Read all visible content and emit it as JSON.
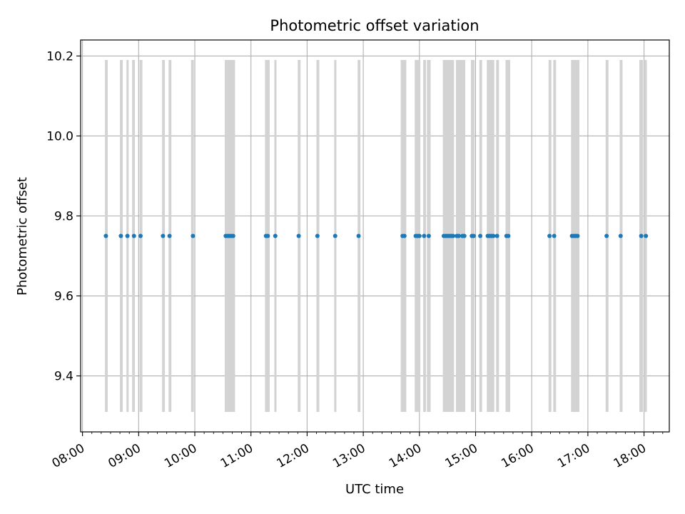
{
  "chart_data": {
    "type": "scatter",
    "title": "Photometric offset variation",
    "xlabel": "UTC time",
    "ylabel": "Photometric offset",
    "grid": true,
    "xlim": [
      "07:58",
      "18:27"
    ],
    "ylim": [
      9.26,
      10.24
    ],
    "x_ticks": [
      "08:00",
      "09:00",
      "10:00",
      "11:00",
      "12:00",
      "13:00",
      "14:00",
      "15:00",
      "16:00",
      "17:00",
      "18:00"
    ],
    "y_ticks": [
      "9.4",
      "9.6",
      "9.8",
      "10.0",
      "10.2"
    ],
    "colors": {
      "points": "#1f77b4",
      "bands": "#d3d3d3",
      "grid": "#b0b0b0"
    },
    "band_range": [
      9.31,
      10.19
    ],
    "series": [
      {
        "times": [
          "08:25",
          "08:41",
          "08:48",
          "08:55",
          "09:02",
          "09:26",
          "09:33",
          "09:58",
          "10:33",
          "10:35",
          "10:37",
          "10:39",
          "10:41",
          "11:16",
          "11:18",
          "11:26",
          "11:51",
          "12:11",
          "12:30",
          "12:55",
          "13:42",
          "13:44",
          "13:56",
          "13:58",
          "14:00",
          "14:05",
          "14:10",
          "14:26",
          "14:28",
          "14:30",
          "14:32",
          "14:34",
          "14:36",
          "14:40",
          "14:42",
          "14:46",
          "14:48",
          "14:56",
          "14:58",
          "15:05",
          "15:13",
          "15:15",
          "15:17",
          "15:19",
          "15:23",
          "15:33",
          "15:35",
          "16:19",
          "16:24",
          "16:43",
          "16:45",
          "16:47",
          "16:49",
          "17:20",
          "17:35",
          "17:57",
          "18:02"
        ],
        "values": [
          9.75,
          9.75,
          9.75,
          9.75,
          9.75,
          9.75,
          9.75,
          9.75,
          9.75,
          9.75,
          9.75,
          9.75,
          9.75,
          9.75,
          9.75,
          9.75,
          9.75,
          9.75,
          9.75,
          9.75,
          9.75,
          9.75,
          9.75,
          9.75,
          9.75,
          9.75,
          9.75,
          9.75,
          9.75,
          9.75,
          9.75,
          9.75,
          9.75,
          9.75,
          9.75,
          9.75,
          9.75,
          9.75,
          9.75,
          9.75,
          9.75,
          9.75,
          9.75,
          9.75,
          9.75,
          9.75,
          9.75,
          9.75,
          9.75,
          9.75,
          9.75,
          9.75,
          9.75,
          9.75,
          9.75,
          9.75,
          9.75
        ]
      }
    ],
    "bands": [
      [
        "08:24",
        "08:27"
      ],
      [
        "08:40",
        "08:43"
      ],
      [
        "08:47",
        "08:49"
      ],
      [
        "08:53",
        "08:56"
      ],
      [
        "09:01",
        "09:04"
      ],
      [
        "09:25",
        "09:28"
      ],
      [
        "09:32",
        "09:35"
      ],
      [
        "09:56",
        "09:59"
      ],
      [
        "10:32",
        "10:43"
      ],
      [
        "11:15",
        "11:20"
      ],
      [
        "11:25",
        "11:27"
      ],
      [
        "11:50",
        "11:53"
      ],
      [
        "12:10",
        "12:13"
      ],
      [
        "12:29",
        "12:31"
      ],
      [
        "12:54",
        "12:57"
      ],
      [
        "13:40",
        "13:46"
      ],
      [
        "13:55",
        "14:01"
      ],
      [
        "14:04",
        "14:07"
      ],
      [
        "14:08",
        "14:12"
      ],
      [
        "14:25",
        "14:37"
      ],
      [
        "14:39",
        "14:49"
      ],
      [
        "14:55",
        "14:59"
      ],
      [
        "15:04",
        "15:07"
      ],
      [
        "15:12",
        "15:20"
      ],
      [
        "15:22",
        "15:25"
      ],
      [
        "15:32",
        "15:37"
      ],
      [
        "16:18",
        "16:21"
      ],
      [
        "16:23",
        "16:26"
      ],
      [
        "16:42",
        "16:51"
      ],
      [
        "17:19",
        "17:22"
      ],
      [
        "17:34",
        "17:37"
      ],
      [
        "17:55",
        "17:59"
      ],
      [
        "18:00",
        "18:03"
      ]
    ]
  }
}
